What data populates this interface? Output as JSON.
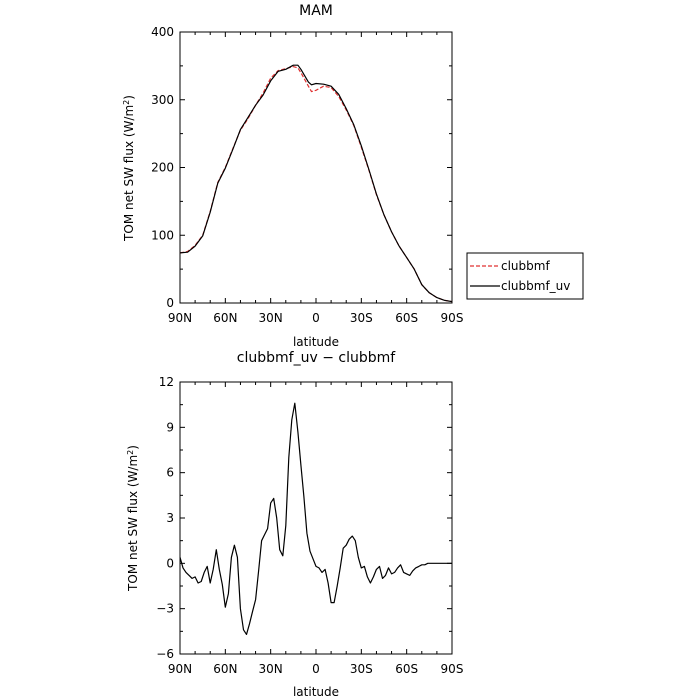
{
  "chart_data": [
    {
      "type": "line",
      "title": "MAM",
      "xlabel": "latitude",
      "ylabel": "TOM net SW flux (W/m",
      "ylabel_sup": "2",
      "ylabel_close": ")",
      "xlim": [
        90,
        -90
      ],
      "ylim": [
        0,
        400
      ],
      "xticks": [
        90,
        60,
        30,
        0,
        -30,
        -60,
        -90
      ],
      "xtick_labels": [
        "90N",
        "60N",
        "30N",
        "0",
        "30S",
        "60S",
        "90S"
      ],
      "yticks": [
        0,
        100,
        200,
        300,
        400
      ],
      "ytick_labels": [
        "0",
        "100",
        "200",
        "300",
        "400"
      ],
      "legend": "right-bottom",
      "grid": false,
      "series": [
        {
          "name": "clubbmf",
          "color": "#e03030",
          "dash": "dashed",
          "x": [
            90,
            85,
            80,
            75,
            70,
            65,
            60,
            55,
            50,
            45,
            40,
            35,
            30,
            25,
            20,
            15,
            12,
            10,
            5,
            3,
            0,
            -5,
            -10,
            -15,
            -20,
            -25,
            -30,
            -35,
            -40,
            -45,
            -50,
            -55,
            -60,
            -65,
            -70,
            -75,
            -80,
            -85,
            -90
          ],
          "y": [
            74,
            76,
            85,
            100,
            135,
            178,
            200,
            228,
            255,
            272,
            292,
            310,
            332,
            343,
            346,
            349,
            347,
            340,
            320,
            312,
            314,
            320,
            318,
            305,
            285,
            262,
            230,
            196,
            160,
            130,
            105,
            84,
            67,
            50,
            27,
            15,
            8,
            4,
            2
          ]
        },
        {
          "name": "clubbmf_uv",
          "color": "#000000",
          "dash": "solid",
          "x": [
            90,
            85,
            80,
            75,
            70,
            65,
            60,
            55,
            50,
            45,
            40,
            35,
            30,
            25,
            20,
            15,
            12,
            10,
            5,
            3,
            0,
            -5,
            -10,
            -15,
            -20,
            -25,
            -30,
            -35,
            -40,
            -45,
            -50,
            -55,
            -60,
            -65,
            -70,
            -75,
            -80,
            -85,
            -90
          ],
          "y": [
            74,
            75,
            84,
            99,
            134,
            177,
            199,
            227,
            256,
            274,
            292,
            307,
            328,
            342,
            345,
            351,
            351,
            345,
            326,
            322,
            324,
            323,
            320,
            308,
            287,
            263,
            232,
            197,
            161,
            130,
            105,
            84,
            67,
            50,
            27,
            15,
            8,
            4,
            2
          ]
        }
      ]
    },
    {
      "type": "line",
      "title": "clubbmf_uv − clubbmf",
      "xlabel": "latitude",
      "ylabel": "TOM net SW flux (W/m",
      "ylabel_sup": "2",
      "ylabel_close": ")",
      "xlim": [
        90,
        -90
      ],
      "ylim": [
        -6,
        12
      ],
      "xticks": [
        90,
        60,
        30,
        0,
        -30,
        -60,
        -90
      ],
      "xtick_labels": [
        "90N",
        "60N",
        "30N",
        "0",
        "30S",
        "60S",
        "90S"
      ],
      "yticks": [
        -6,
        -3,
        0,
        3,
        6,
        9,
        12
      ],
      "ytick_labels": [
        "−6",
        "−3",
        "0",
        "3",
        "6",
        "9",
        "12"
      ],
      "grid": false,
      "series": [
        {
          "color": "#000000",
          "dash": "solid",
          "x": [
            90,
            88,
            86,
            84,
            82,
            80,
            78,
            76,
            74,
            72,
            70,
            68,
            66,
            64,
            62,
            60,
            58,
            56,
            54,
            52,
            50,
            48,
            46,
            44,
            42,
            40,
            38,
            36,
            34,
            32,
            30,
            28,
            26,
            24,
            22,
            20,
            18,
            16,
            14,
            12,
            10,
            8,
            6,
            4,
            2,
            0,
            -2,
            -4,
            -6,
            -8,
            -10,
            -12,
            -14,
            -16,
            -18,
            -20,
            -22,
            -24,
            -26,
            -28,
            -30,
            -32,
            -34,
            -36,
            -38,
            -40,
            -42,
            -44,
            -46,
            -48,
            -50,
            -52,
            -54,
            -56,
            -58,
            -60,
            -62,
            -64,
            -66,
            -68,
            -70,
            -72,
            -74,
            -76,
            -78,
            -80,
            -82,
            -84,
            -86,
            -88,
            -90
          ],
          "y": [
            0.4,
            -0.3,
            -0.6,
            -0.8,
            -1.0,
            -0.9,
            -1.3,
            -1.2,
            -0.6,
            -0.2,
            -1.3,
            -0.4,
            0.9,
            -0.4,
            -1.4,
            -2.9,
            -2.0,
            0.4,
            1.2,
            0.4,
            -3.0,
            -4.4,
            -4.7,
            -4.0,
            -3.2,
            -2.4,
            -0.5,
            1.5,
            1.9,
            2.3,
            4.0,
            4.3,
            3.0,
            0.9,
            0.5,
            2.5,
            7.0,
            9.5,
            10.6,
            8.7,
            6.5,
            4.4,
            2.0,
            0.8,
            0.3,
            -0.2,
            -0.3,
            -0.6,
            -0.4,
            -1.3,
            -2.6,
            -2.6,
            -1.5,
            -0.3,
            1.0,
            1.2,
            1.6,
            1.8,
            1.5,
            0.4,
            -0.3,
            -0.2,
            -0.9,
            -1.3,
            -0.9,
            -0.4,
            -0.2,
            -1.0,
            -0.8,
            -0.3,
            -0.7,
            -0.6,
            -0.3,
            -0.1,
            -0.6,
            -0.7,
            -0.8,
            -0.5,
            -0.3,
            -0.2,
            -0.1,
            -0.1,
            0.0,
            0.0,
            0.0,
            0.0,
            0.0,
            0.0,
            0.0,
            0.0,
            0.0
          ]
        }
      ]
    }
  ]
}
